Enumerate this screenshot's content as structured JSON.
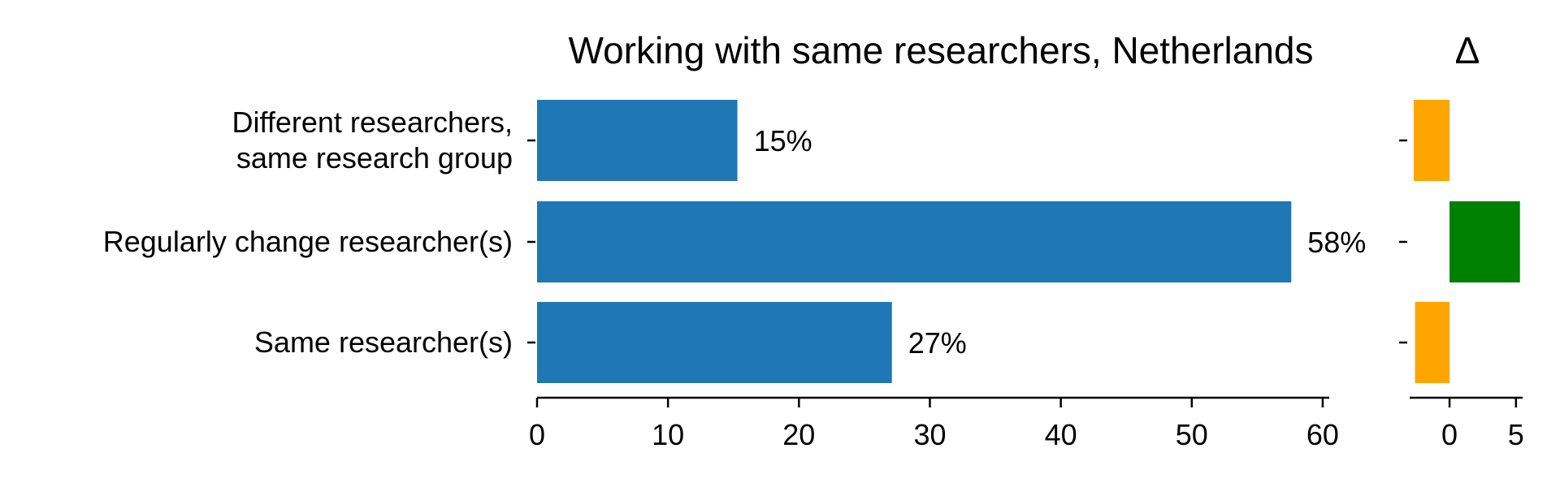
{
  "chart_data": [
    {
      "type": "bar",
      "orientation": "horizontal",
      "title": "Working with same researchers, Netherlands",
      "categories": [
        [
          "Different researchers,",
          "same research group"
        ],
        [
          "Regularly change researcher(s)"
        ],
        [
          "Same researcher(s)"
        ]
      ],
      "values": [
        15.3,
        57.6,
        27.1
      ],
      "value_labels": [
        "15%",
        "58%",
        "27%"
      ],
      "xticks": [
        "0",
        "10",
        "20",
        "30",
        "40",
        "50",
        "60"
      ],
      "xtick_values": [
        0,
        10,
        20,
        30,
        40,
        50,
        60
      ],
      "xlim": [
        0,
        60.5
      ],
      "color": "#1f77b4",
      "grid": false,
      "legend": "none"
    },
    {
      "type": "bar",
      "orientation": "horizontal",
      "title": "Δ",
      "categories": [
        "Different researchers, same research group",
        "Regularly change researcher(s)",
        "Same researcher(s)"
      ],
      "values": [
        -2.7,
        5.3,
        -2.6
      ],
      "colors": [
        "#ffa500",
        "#008000",
        "#ffa500"
      ],
      "xticks": [
        "0",
        "5"
      ],
      "xtick_values": [
        0,
        5
      ],
      "xlim": [
        -3,
        5.5
      ],
      "grid": false,
      "legend": "none"
    }
  ]
}
